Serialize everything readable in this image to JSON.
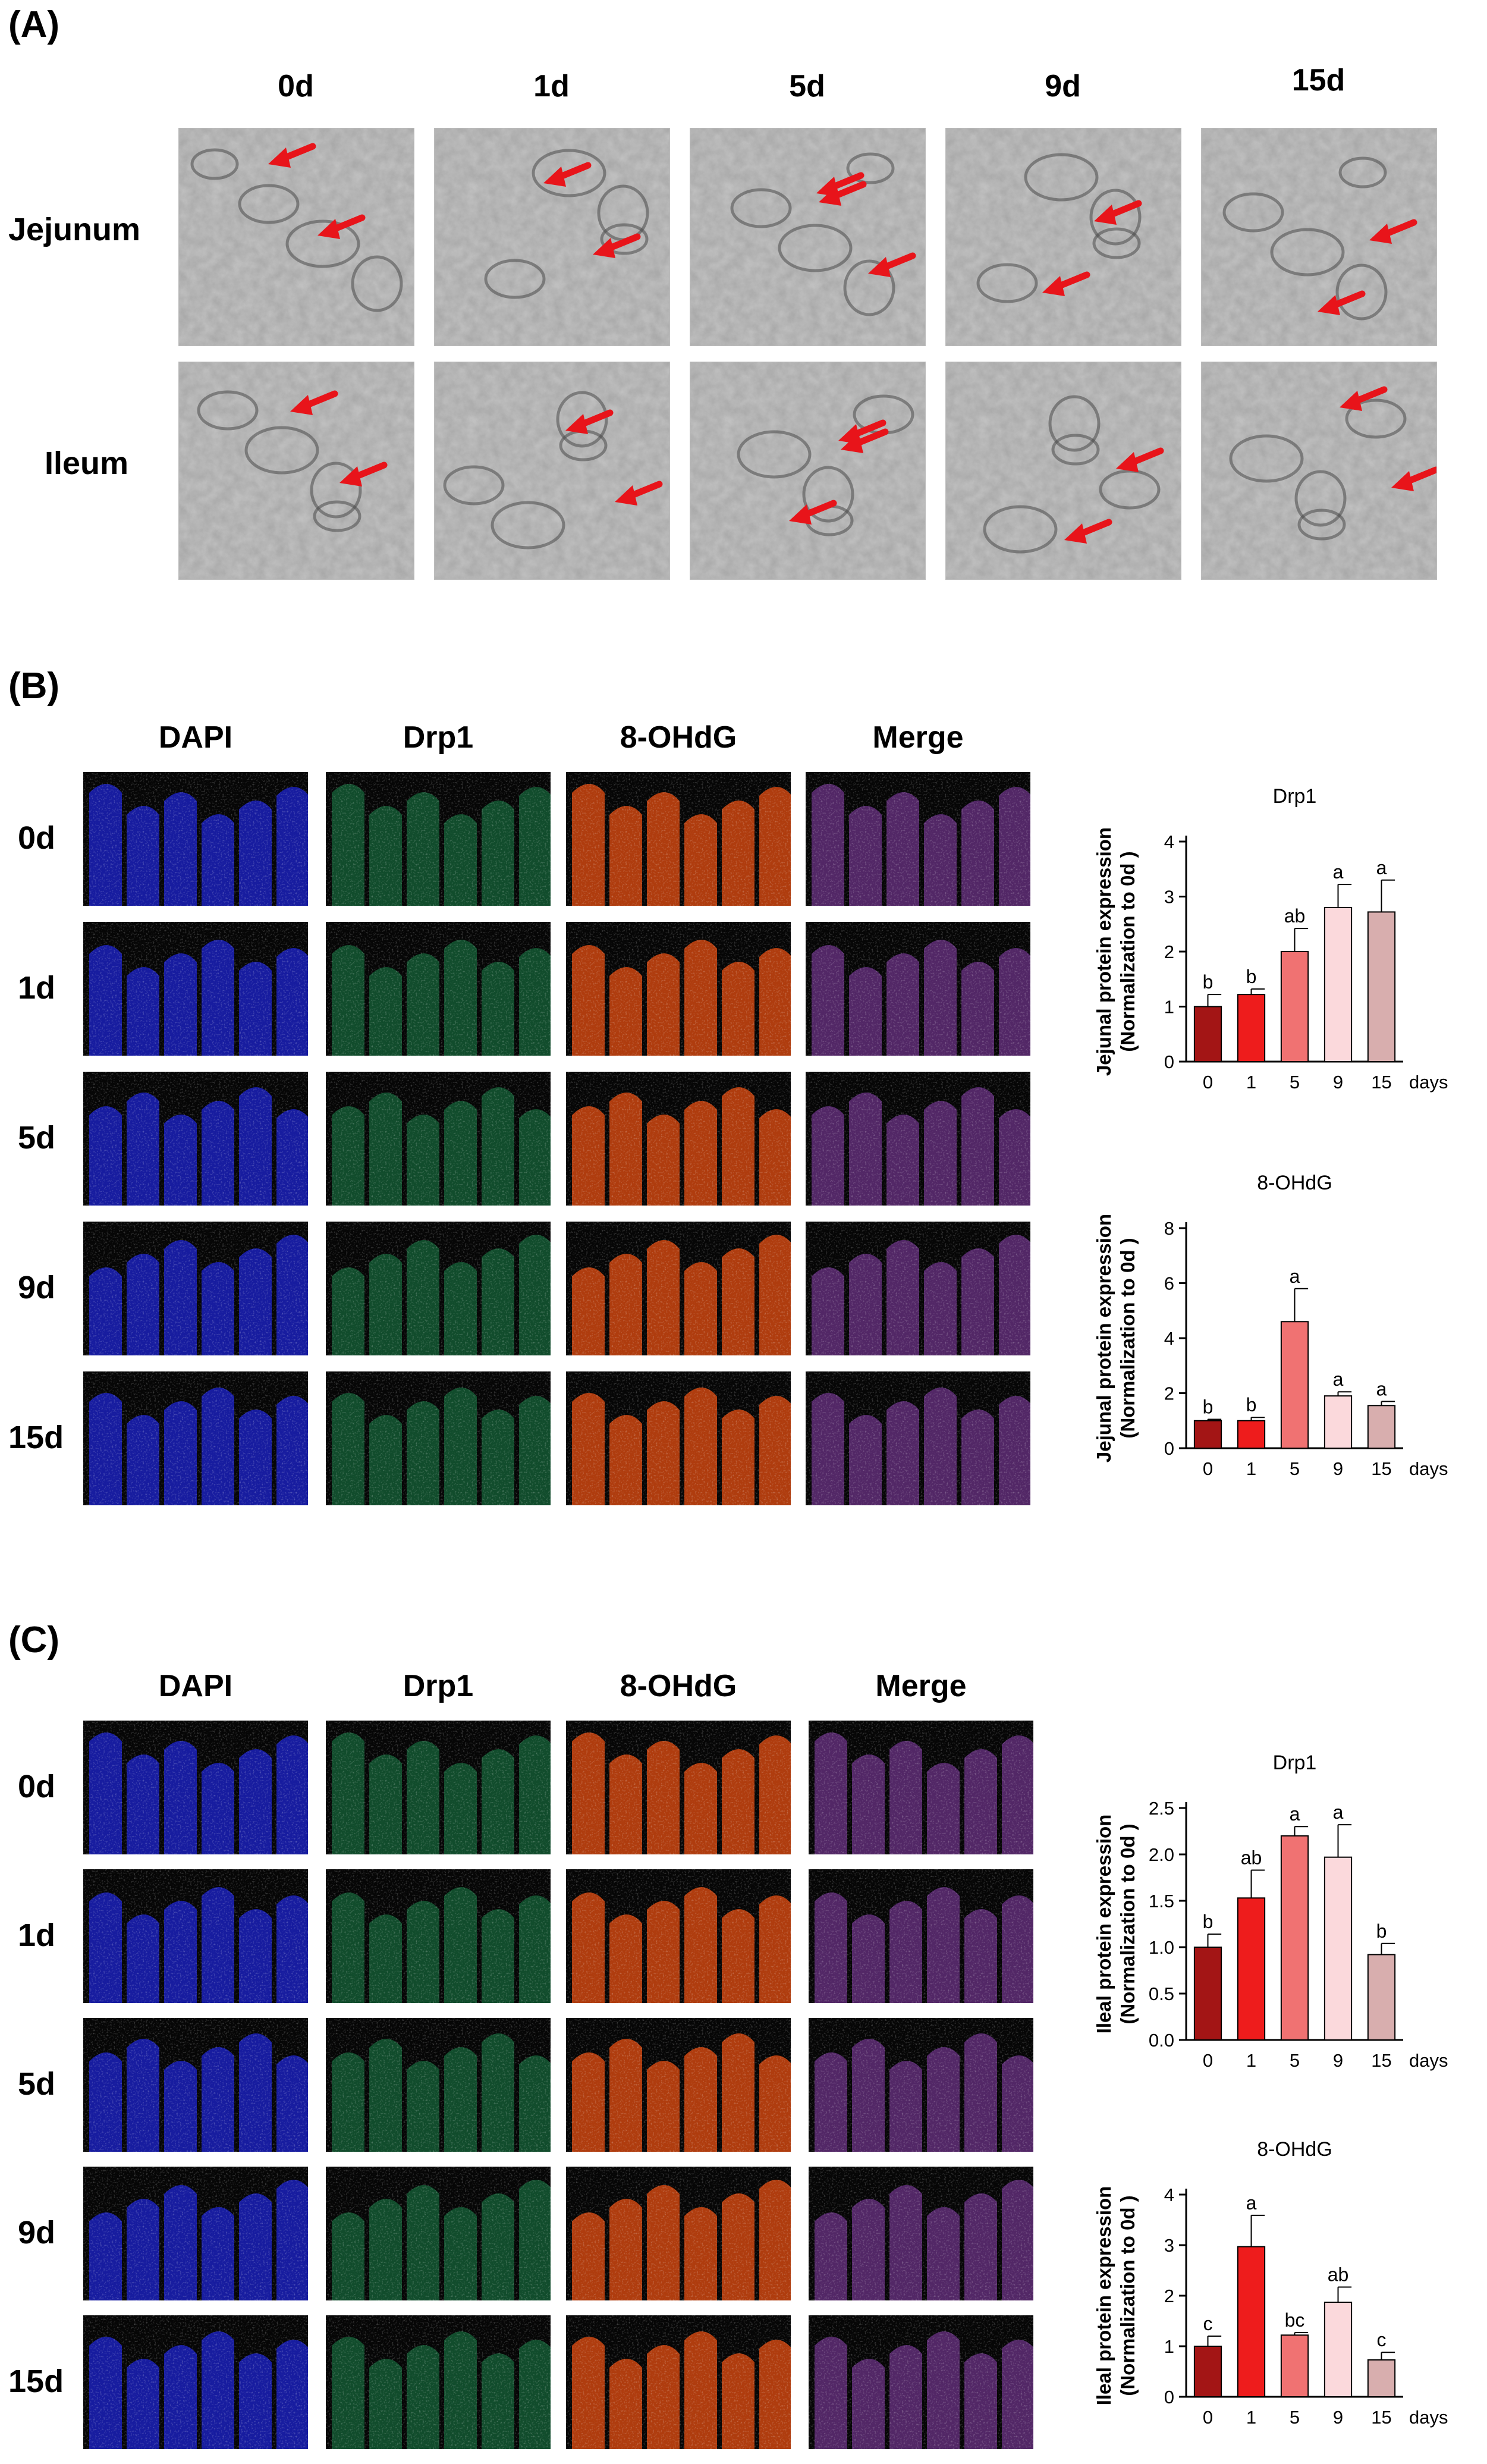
{
  "panels": {
    "a": {
      "label": "(A)",
      "columns": [
        "0d",
        "1d",
        "5d",
        "9d",
        "15d"
      ],
      "rows": [
        "Jejunum",
        "Ileum"
      ]
    },
    "b": {
      "label": "(B)",
      "columns": [
        "DAPI",
        "Drp1",
        "8-OHdG",
        "Merge"
      ],
      "rows": [
        "0d",
        "1d",
        "5d",
        "9d",
        "15d"
      ]
    },
    "c": {
      "label": "(C)",
      "columns": [
        "DAPI",
        "Drp1",
        "8-OHdG",
        "Merge"
      ],
      "rows": [
        "0d",
        "1d",
        "5d",
        "9d",
        "15d"
      ]
    }
  },
  "colors": {
    "arrow": "#e8141a",
    "dapi": "#1a1fb0",
    "drp1": "#1fa25a",
    "ohdg": "#c2420f",
    "bars": [
      "#a31515",
      "#ee1c1c",
      "#f07272",
      "#fbd9dc",
      "#d8aeae"
    ]
  },
  "chart_data": [
    {
      "type": "bar",
      "title": "Drp1",
      "ylabel": "Jejunal protein expression\n(Normalization to 0d )",
      "xlabel": "days",
      "categories": [
        "0",
        "1",
        "5",
        "9",
        "15"
      ],
      "values": [
        1.0,
        1.22,
        2.0,
        2.8,
        2.72
      ],
      "errors": [
        0.22,
        0.1,
        0.42,
        0.42,
        0.58
      ],
      "letters": [
        "b",
        "b",
        "ab",
        "a",
        "a"
      ],
      "ylim": [
        0,
        4
      ],
      "yticks": [
        "0",
        "1",
        "2",
        "3",
        "4"
      ]
    },
    {
      "type": "bar",
      "title": "8-OHdG",
      "ylabel": "Jejunal protein expression\n(Normalization to 0d )",
      "xlabel": "days",
      "categories": [
        "0",
        "1",
        "5",
        "9",
        "15"
      ],
      "values": [
        1.0,
        1.0,
        4.6,
        1.9,
        1.55
      ],
      "errors": [
        0.05,
        0.12,
        1.2,
        0.15,
        0.15
      ],
      "letters": [
        "b",
        "b",
        "a",
        "a",
        "a"
      ],
      "ylim": [
        0,
        8
      ],
      "yticks": [
        "0",
        "2",
        "4",
        "6",
        "8"
      ]
    },
    {
      "type": "bar",
      "title": "Drp1",
      "ylabel": "Ileal protein expression\n(Normalization to 0d )",
      "xlabel": "days",
      "categories": [
        "0",
        "1",
        "5",
        "9",
        "15"
      ],
      "values": [
        1.0,
        1.53,
        2.2,
        1.97,
        0.92
      ],
      "errors": [
        0.14,
        0.3,
        0.1,
        0.35,
        0.12
      ],
      "letters": [
        "b",
        "ab",
        "a",
        "a",
        "b"
      ],
      "ylim": [
        0,
        2.5
      ],
      "yticks": [
        "0.0",
        "0.5",
        "1.0",
        "1.5",
        "2.0",
        "2.5"
      ]
    },
    {
      "type": "bar",
      "title": "8-OHdG",
      "ylabel": "Ileal protein expression\n(Normalization to 0d )",
      "xlabel": "days",
      "categories": [
        "0",
        "1",
        "5",
        "9",
        "15"
      ],
      "values": [
        1.0,
        2.97,
        1.22,
        1.87,
        0.73
      ],
      "errors": [
        0.2,
        0.62,
        0.05,
        0.3,
        0.15
      ],
      "letters": [
        "c",
        "a",
        "bc",
        "ab",
        "c"
      ],
      "ylim": [
        0,
        4
      ],
      "yticks": [
        "0",
        "1",
        "2",
        "3",
        "4"
      ]
    }
  ]
}
